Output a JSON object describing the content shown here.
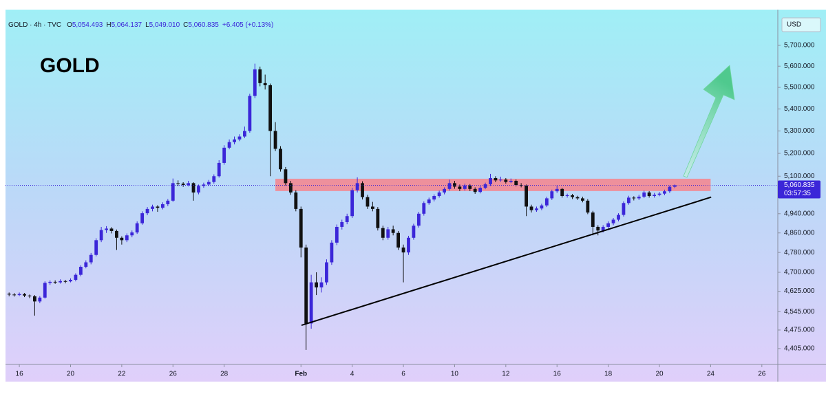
{
  "chart_data": {
    "type": "candlestick",
    "title": "GOLD",
    "symbol": "GOLD · 4h · TVC",
    "legend": [
      {
        "label": "O",
        "value": "5,054.493"
      },
      {
        "label": "H",
        "value": "5,064.137"
      },
      {
        "label": "L",
        "value": "5,049.010"
      },
      {
        "label": "C",
        "value": "5,060.835"
      }
    ],
    "change": "+6.405 (+0.13%)",
    "currency": "USD",
    "up_color": "#3b26d8",
    "down_color": "#111111",
    "y_scale": "log",
    "grid": false,
    "xlim": [
      -0.54,
      29.57
    ],
    "xticks": [
      {
        "value": 0,
        "label": "16"
      },
      {
        "value": 2,
        "label": "20"
      },
      {
        "value": 4,
        "label": "22"
      },
      {
        "value": 6,
        "label": "26"
      },
      {
        "value": 8,
        "label": "28"
      },
      {
        "value": 11,
        "label": "Feb"
      },
      {
        "value": 13,
        "label": "4"
      },
      {
        "value": 15,
        "label": "6"
      },
      {
        "value": 17,
        "label": "10"
      },
      {
        "value": 19,
        "label": "12"
      },
      {
        "value": 21,
        "label": "16"
      },
      {
        "value": 23,
        "label": "18"
      },
      {
        "value": 25,
        "label": "20"
      },
      {
        "value": 27,
        "label": "24"
      },
      {
        "value": 29,
        "label": "26"
      }
    ],
    "ylim": [
      4346,
      5862
    ],
    "yticks": [
      {
        "value": 5700,
        "label": "5,700.000"
      },
      {
        "value": 5600,
        "label": "5,600.000"
      },
      {
        "value": 5500,
        "label": "5,500.000"
      },
      {
        "value": 5400,
        "label": "5,400.000"
      },
      {
        "value": 5300,
        "label": "5,300.000"
      },
      {
        "value": 5200,
        "label": "5,200.000"
      },
      {
        "value": 5100,
        "label": "5,100.000"
      },
      {
        "value": 4940,
        "label": "4,940.000"
      },
      {
        "value": 4860,
        "label": "4,860.000"
      },
      {
        "value": 4780,
        "label": "4,780.000"
      },
      {
        "value": 4700,
        "label": "4,700.000"
      },
      {
        "value": 4625,
        "label": "4,625.000"
      },
      {
        "value": 4545,
        "label": "4,545.000"
      },
      {
        "value": 4475,
        "label": "4,475.000"
      },
      {
        "value": 4405,
        "label": "4,405.000"
      }
    ],
    "last_price": {
      "value": 5060.835,
      "label": "5,060.835"
    },
    "countdown": "03:57:35",
    "zone": {
      "x": [
        10,
        27
      ],
      "y": [
        5036,
        5089
      ],
      "color": "#f7828c"
    },
    "trendline": {
      "x": [
        11.02,
        27.02
      ],
      "y": [
        4493,
        5010
      ],
      "color": "#000000"
    },
    "x": [
      -0.4,
      -0.2,
      0,
      0.2,
      0.4,
      0.6,
      0.8,
      1,
      1.2,
      1.4,
      1.6,
      1.8,
      2,
      2.2,
      2.4,
      2.6,
      2.8,
      3,
      3.2,
      3.4,
      3.6,
      3.8,
      4,
      4.2,
      4.4,
      4.6,
      4.8,
      5,
      5.2,
      5.4,
      5.6,
      5.8,
      6,
      6.2,
      6.4,
      6.6,
      6.8,
      7,
      7.2,
      7.4,
      7.6,
      7.8,
      8,
      8.2,
      8.4,
      8.6,
      8.8,
      9,
      9.2,
      9.4,
      9.6,
      9.8,
      10,
      10.2,
      10.4,
      10.6,
      10.8,
      11,
      11.2,
      11.4,
      11.6,
      11.8,
      12,
      12.2,
      12.4,
      12.6,
      12.8,
      13,
      13.2,
      13.4,
      13.6,
      13.8,
      14,
      14.2,
      14.4,
      14.6,
      14.8,
      15,
      15.2,
      15.4,
      15.6,
      15.8,
      16,
      16.2,
      16.4,
      16.6,
      16.8,
      17,
      17.2,
      17.4,
      17.6,
      17.8,
      18,
      18.2,
      18.4,
      18.6,
      18.8,
      19,
      19.2,
      19.4,
      19.6,
      19.8,
      20,
      20.2,
      20.4,
      20.6,
      20.8,
      21,
      21.2,
      21.4,
      21.6,
      21.8,
      22,
      22.2,
      22.4,
      22.6,
      22.8,
      23,
      23.2,
      23.4,
      23.6,
      23.8,
      24,
      24.2,
      24.4,
      24.6,
      24.8,
      25,
      25.2,
      25.4,
      25.6
    ],
    "open": [
      4615,
      4612,
      4610,
      4614,
      4608,
      4605,
      4585,
      4600,
      4658,
      4662,
      4660,
      4665,
      4664,
      4670,
      4690,
      4722,
      4740,
      4770,
      4830,
      4872,
      4878,
      4868,
      4840,
      4830,
      4850,
      4862,
      4900,
      4942,
      4960,
      4970,
      4965,
      4980,
      4995,
      5070,
      5068,
      5062,
      5070,
      5030,
      5058,
      5064,
      5075,
      5100,
      5158,
      5225,
      5250,
      5262,
      5275,
      5300,
      5460,
      5585,
      5520,
      5510,
      5300,
      5220,
      5130,
      5070,
      5030,
      4960,
      4800,
      4500,
      4660,
      4640,
      4660,
      4740,
      4820,
      4885,
      4905,
      4930,
      5040,
      5070,
      5010,
      4970,
      4960,
      4880,
      4840,
      4875,
      4860,
      4800,
      4780,
      4840,
      4890,
      4940,
      4985,
      5000,
      5015,
      5030,
      5045,
      5070,
      5055,
      5045,
      5060,
      5045,
      5032,
      5050,
      5065,
      5092,
      5082,
      5085,
      5075,
      5080,
      5062,
      5060,
      4970,
      4955,
      4962,
      4975,
      5005,
      5035,
      5045,
      5015,
      5018,
      5010,
      5005,
      4995,
      4945,
      4885,
      4870,
      4885,
      4900,
      4915,
      4935,
      4985,
      5008,
      5005,
      5012,
      5030,
      5015,
      5020,
      5025,
      5035,
      5054.493
    ],
    "high": [
      4620,
      4618,
      4620,
      4618,
      4612,
      4610,
      4606,
      4664,
      4668,
      4668,
      4672,
      4670,
      4676,
      4696,
      4728,
      4748,
      4778,
      4838,
      4885,
      4888,
      4884,
      4874,
      4846,
      4858,
      4870,
      4908,
      4950,
      4968,
      4978,
      4976,
      4988,
      5002,
      5090,
      5082,
      5074,
      5080,
      5074,
      5064,
      5072,
      5084,
      5108,
      5170,
      5236,
      5262,
      5275,
      5285,
      5320,
      5470,
      5612,
      5598,
      5560,
      5518,
      5340,
      5232,
      5140,
      5080,
      5040,
      4970,
      4812,
      4690,
      4700,
      4680,
      4752,
      4830,
      4895,
      4915,
      4940,
      5050,
      5095,
      5078,
      5020,
      4990,
      4968,
      4890,
      4885,
      4890,
      4868,
      4812,
      4848,
      4898,
      4948,
      4992,
      5008,
      5022,
      5038,
      5052,
      5085,
      5080,
      5064,
      5068,
      5066,
      5052,
      5058,
      5072,
      5110,
      5100,
      5098,
      5092,
      5090,
      5086,
      5070,
      5064,
      4978,
      4970,
      4982,
      5012,
      5042,
      5060,
      5050,
      5025,
      5024,
      5016,
      5012,
      5002,
      4952,
      4892,
      4892,
      4908,
      4922,
      4942,
      4992,
      5016,
      5014,
      5020,
      5038,
      5036,
      5028,
      5032,
      5042,
      5060,
      5064.137
    ],
    "low": [
      4605,
      4604,
      4606,
      4602,
      4598,
      4530,
      4578,
      4596,
      4650,
      4654,
      4655,
      4656,
      4660,
      4664,
      4684,
      4716,
      4732,
      4764,
      4822,
      4860,
      4858,
      4790,
      4812,
      4822,
      4842,
      4856,
      4894,
      4934,
      4950,
      4948,
      4958,
      4972,
      4990,
      5058,
      5054,
      5056,
      4995,
      5022,
      5050,
      5058,
      5068,
      5094,
      5150,
      5218,
      5240,
      5254,
      5268,
      5292,
      5450,
      5505,
      5490,
      5100,
      5210,
      5120,
      5060,
      5020,
      4950,
      4760,
      4400,
      4480,
      4610,
      4620,
      4650,
      4730,
      4810,
      4874,
      4896,
      4922,
      5030,
      5000,
      4960,
      4950,
      4870,
      4830,
      4832,
      4850,
      4790,
      4660,
      4770,
      4832,
      4882,
      4932,
      4978,
      4992,
      5008,
      5022,
      5038,
      5046,
      5036,
      5038,
      5036,
      5024,
      5026,
      5044,
      5058,
      5074,
      5076,
      5068,
      5070,
      5056,
      5052,
      4930,
      4945,
      4948,
      4955,
      4968,
      4998,
      5028,
      5008,
      5008,
      5002,
      4998,
      4988,
      4938,
      4850,
      4850,
      4862,
      4878,
      4892,
      4908,
      4928,
      4978,
      4996,
      4998,
      5006,
      5008,
      5008,
      5014,
      5018,
      5028,
      5049.01
    ],
    "close": [
      4612,
      4610,
      4614,
      4608,
      4605,
      4585,
      4600,
      4658,
      4662,
      4660,
      4665,
      4664,
      4670,
      4690,
      4722,
      4740,
      4770,
      4830,
      4872,
      4878,
      4868,
      4840,
      4830,
      4850,
      4862,
      4900,
      4942,
      4960,
      4970,
      4965,
      4980,
      4995,
      5070,
      5068,
      5062,
      5070,
      5030,
      5058,
      5064,
      5075,
      5100,
      5158,
      5225,
      5250,
      5262,
      5275,
      5300,
      5460,
      5585,
      5520,
      5510,
      5300,
      5220,
      5130,
      5070,
      5030,
      4960,
      4800,
      4500,
      4660,
      4640,
      4660,
      4740,
      4820,
      4885,
      4905,
      4930,
      5040,
      5070,
      5010,
      4970,
      4960,
      4880,
      4840,
      4875,
      4860,
      4800,
      4780,
      4840,
      4890,
      4940,
      4985,
      5000,
      5015,
      5030,
      5045,
      5070,
      5055,
      5045,
      5060,
      5045,
      5032,
      5050,
      5065,
      5092,
      5082,
      5085,
      5075,
      5080,
      5062,
      5060,
      4970,
      4955,
      4962,
      4975,
      5005,
      5035,
      5045,
      5015,
      5018,
      5010,
      5005,
      4995,
      4945,
      4885,
      4870,
      4885,
      4900,
      4915,
      4935,
      4985,
      5008,
      5005,
      5012,
      5030,
      5015,
      5020,
      5025,
      5035,
      5054.43,
      5060.835
    ]
  }
}
